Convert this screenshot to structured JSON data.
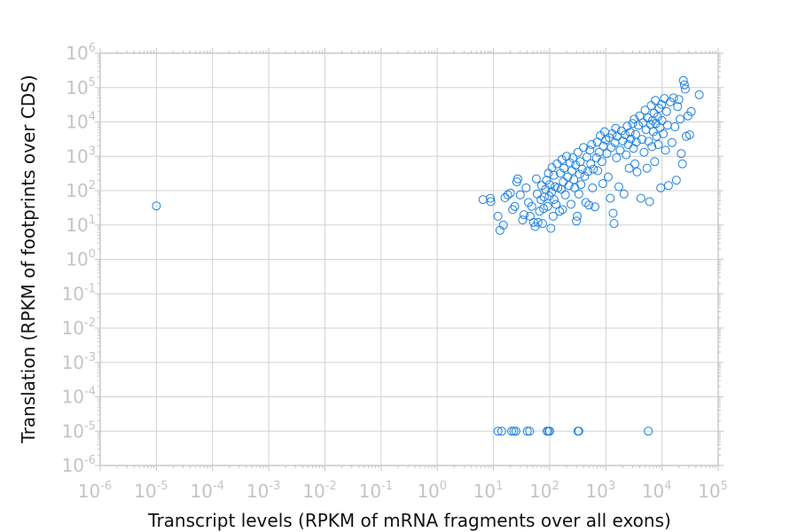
{
  "chart_data": {
    "type": "scatter",
    "xlabel": "Transcript levels (RPKM of mRNA fragments over all exons)",
    "ylabel": "Translation (RPKM of footprints over CDS)",
    "x_scale": "log",
    "y_scale": "log",
    "xlim": [
      1e-06,
      100000.0
    ],
    "ylim": [
      1e-06,
      1000000.0
    ],
    "x_ticks": [
      {
        "base": "10",
        "exp": "-6"
      },
      {
        "base": "10",
        "exp": "-5"
      },
      {
        "base": "10",
        "exp": "-4"
      },
      {
        "base": "10",
        "exp": "-3"
      },
      {
        "base": "10",
        "exp": "-2"
      },
      {
        "base": "10",
        "exp": "-1"
      },
      {
        "base": "10",
        "exp": "0"
      },
      {
        "base": "10",
        "exp": "1"
      },
      {
        "base": "10",
        "exp": "2"
      },
      {
        "base": "10",
        "exp": "3"
      },
      {
        "base": "10",
        "exp": "4"
      },
      {
        "base": "10",
        "exp": "5"
      }
    ],
    "y_ticks": [
      {
        "base": "10",
        "exp": "-6"
      },
      {
        "base": "10",
        "exp": "-5"
      },
      {
        "base": "10",
        "exp": "-4"
      },
      {
        "base": "10",
        "exp": "-3"
      },
      {
        "base": "10",
        "exp": "-2"
      },
      {
        "base": "10",
        "exp": "-1"
      },
      {
        "base": "10",
        "exp": "0"
      },
      {
        "base": "10",
        "exp": "1"
      },
      {
        "base": "10",
        "exp": "2"
      },
      {
        "base": "10",
        "exp": "3"
      },
      {
        "base": "10",
        "exp": "4"
      },
      {
        "base": "10",
        "exp": "5"
      },
      {
        "base": "10",
        "exp": "6"
      }
    ],
    "grid": true,
    "marker": "open-circle",
    "point_color": "#1a7fe0",
    "points": [
      [
        1e-05,
        36
      ],
      [
        12,
        1e-05
      ],
      [
        14,
        1e-05
      ],
      [
        21,
        1e-05
      ],
      [
        23,
        1e-05
      ],
      [
        25,
        1e-05
      ],
      [
        40,
        1e-05
      ],
      [
        44,
        1e-05
      ],
      [
        90,
        1e-05
      ],
      [
        95,
        1e-05
      ],
      [
        100,
        1e-05
      ],
      [
        320,
        1e-05
      ],
      [
        330,
        1e-05
      ],
      [
        5700,
        1e-05
      ],
      [
        6.5,
        55
      ],
      [
        8.8,
        60
      ],
      [
        9,
        48
      ],
      [
        12,
        18
      ],
      [
        13,
        7
      ],
      [
        15,
        10
      ],
      [
        16,
        62
      ],
      [
        18,
        75
      ],
      [
        20,
        85
      ],
      [
        22,
        28
      ],
      [
        24,
        35
      ],
      [
        26,
        180
      ],
      [
        27,
        220
      ],
      [
        30,
        75
      ],
      [
        33,
        14
      ],
      [
        35,
        20
      ],
      [
        38,
        120
      ],
      [
        42,
        45
      ],
      [
        45,
        18
      ],
      [
        48,
        35
      ],
      [
        52,
        12
      ],
      [
        55,
        9
      ],
      [
        58,
        220
      ],
      [
        60,
        80
      ],
      [
        62,
        12
      ],
      [
        66,
        25
      ],
      [
        70,
        55
      ],
      [
        72,
        140
      ],
      [
        75,
        11
      ],
      [
        78,
        30
      ],
      [
        80,
        65
      ],
      [
        85,
        110
      ],
      [
        88,
        200
      ],
      [
        92,
        35
      ],
      [
        95,
        320
      ],
      [
        98,
        70
      ],
      [
        100,
        150
      ],
      [
        105,
        8
      ],
      [
        108,
        90
      ],
      [
        110,
        470
      ],
      [
        115,
        18
      ],
      [
        118,
        280
      ],
      [
        120,
        55
      ],
      [
        125,
        130
      ],
      [
        130,
        40
      ],
      [
        135,
        600
      ],
      [
        140,
        120
      ],
      [
        150,
        25
      ],
      [
        155,
        320
      ],
      [
        160,
        110
      ],
      [
        165,
        800
      ],
      [
        170,
        28
      ],
      [
        175,
        180
      ],
      [
        180,
        450
      ],
      [
        190,
        75
      ],
      [
        200,
        1000
      ],
      [
        210,
        250
      ],
      [
        220,
        140
      ],
      [
        230,
        650
      ],
      [
        240,
        40
      ],
      [
        250,
        380
      ],
      [
        260,
        900
      ],
      [
        270,
        210
      ],
      [
        280,
        120
      ],
      [
        290,
        550
      ],
      [
        300,
        13
      ],
      [
        310,
        18
      ],
      [
        320,
        1300
      ],
      [
        330,
        80
      ],
      [
        340,
        300
      ],
      [
        350,
        700
      ],
      [
        360,
        150
      ],
      [
        380,
        420
      ],
      [
        400,
        1800
      ],
      [
        420,
        260
      ],
      [
        440,
        45
      ],
      [
        460,
        950
      ],
      [
        480,
        360
      ],
      [
        500,
        38
      ],
      [
        520,
        1500
      ],
      [
        540,
        600
      ],
      [
        560,
        2200
      ],
      [
        580,
        120
      ],
      [
        600,
        420
      ],
      [
        640,
        34
      ],
      [
        680,
        900
      ],
      [
        700,
        2600
      ],
      [
        720,
        380
      ],
      [
        760,
        1300
      ],
      [
        800,
        4000
      ],
      [
        850,
        700
      ],
      [
        880,
        160
      ],
      [
        900,
        2000
      ],
      [
        950,
        5200
      ],
      [
        1000,
        3000
      ],
      [
        1050,
        1200
      ],
      [
        1100,
        250
      ],
      [
        1150,
        3500
      ],
      [
        1200,
        60
      ],
      [
        1250,
        1800
      ],
      [
        1300,
        4500
      ],
      [
        1350,
        22
      ],
      [
        1400,
        11
      ],
      [
        1450,
        2500
      ],
      [
        1500,
        6500
      ],
      [
        1550,
        900
      ],
      [
        1600,
        3800
      ],
      [
        1700,
        130
      ],
      [
        1800,
        1500
      ],
      [
        1900,
        5500
      ],
      [
        2000,
        2800
      ],
      [
        2100,
        80
      ],
      [
        2200,
        4200
      ],
      [
        2300,
        1100
      ],
      [
        2400,
        7500
      ],
      [
        2500,
        2200
      ],
      [
        2600,
        450
      ],
      [
        2700,
        5000
      ],
      [
        2800,
        3200
      ],
      [
        3000,
        9000
      ],
      [
        3100,
        1700
      ],
      [
        3200,
        12000
      ],
      [
        3300,
        600
      ],
      [
        3400,
        4300
      ],
      [
        3500,
        2600
      ],
      [
        3600,
        350
      ],
      [
        3800,
        8000
      ],
      [
        4000,
        15000
      ],
      [
        4200,
        60
      ],
      [
        4400,
        3100
      ],
      [
        4600,
        9500
      ],
      [
        4800,
        1300
      ],
      [
        5000,
        22000
      ],
      [
        5200,
        6000
      ],
      [
        5400,
        450
      ],
      [
        5600,
        13000
      ],
      [
        5800,
        2700
      ],
      [
        6000,
        48
      ],
      [
        6200,
        8500
      ],
      [
        6400,
        30000
      ],
      [
        6600,
        1900
      ],
      [
        6800,
        11000
      ],
      [
        7000,
        5200
      ],
      [
        7200,
        18000
      ],
      [
        7400,
        700
      ],
      [
        7600,
        42000
      ],
      [
        7800,
        9000
      ],
      [
        8000,
        3800
      ],
      [
        8300,
        14000
      ],
      [
        8600,
        2200
      ],
      [
        8900,
        25000
      ],
      [
        9200,
        6800
      ],
      [
        9500,
        120
      ],
      [
        9800,
        32000
      ],
      [
        10000,
        11000
      ],
      [
        10500,
        4500
      ],
      [
        11000,
        48000
      ],
      [
        11500,
        1500
      ],
      [
        12000,
        20000
      ],
      [
        12500,
        8000
      ],
      [
        13000,
        140
      ],
      [
        14000,
        38000
      ],
      [
        15000,
        2500
      ],
      [
        16000,
        50000
      ],
      [
        17000,
        7200
      ],
      [
        18000,
        200
      ],
      [
        19000,
        28000
      ],
      [
        20000,
        45000
      ],
      [
        21000,
        12000
      ],
      [
        22000,
        1200
      ],
      [
        23000,
        600
      ],
      [
        24000,
        160000
      ],
      [
        25000,
        120000
      ],
      [
        26000,
        90000
      ],
      [
        27000,
        3800
      ],
      [
        29000,
        15000
      ],
      [
        31000,
        4200
      ],
      [
        33000,
        20000
      ],
      [
        46000,
        62000
      ]
    ]
  }
}
